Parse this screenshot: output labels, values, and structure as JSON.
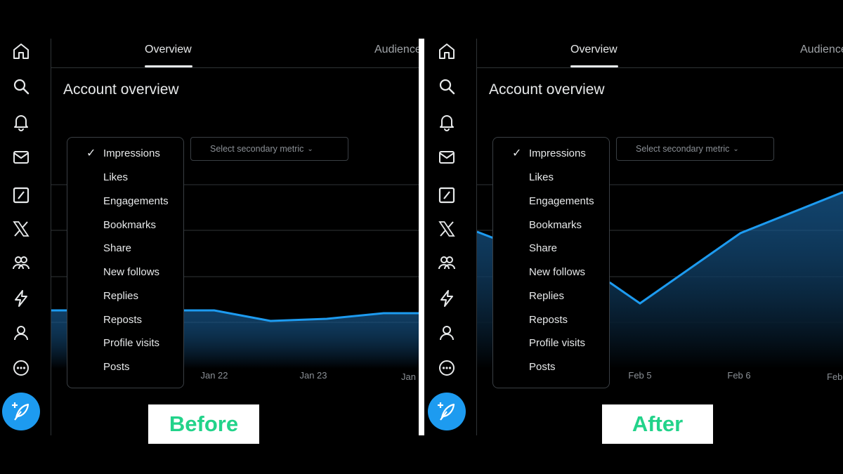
{
  "colors": {
    "accent": "#1d9bf0",
    "label_green": "#22d38a",
    "line": "#1d9bf0"
  },
  "nav_icons": [
    "home-icon",
    "search-icon",
    "bell-icon",
    "mail-icon",
    "grok-icon",
    "x-logo-icon",
    "communities-icon",
    "lightning-icon",
    "profile-icon",
    "more-icon"
  ],
  "before": {
    "tabs": {
      "active": "Overview",
      "inactive": "Audience"
    },
    "title": "Account overview",
    "secondary_select": "Select secondary metric",
    "metrics": [
      "Impressions",
      "Likes",
      "Engagements",
      "Bookmarks",
      "Share",
      "New follows",
      "Replies",
      "Reposts",
      "Profile visits",
      "Posts"
    ],
    "selected_metric": "Impressions",
    "x_labels": [
      "Jan 22",
      "Jan 23",
      "Jan"
    ],
    "label": "Before"
  },
  "after": {
    "tabs": {
      "active": "Overview",
      "inactive": "Audience"
    },
    "title": "Account overview",
    "secondary_select": "Select secondary metric",
    "metrics": [
      "Impressions",
      "Likes",
      "Engagements",
      "Bookmarks",
      "Share",
      "New follows",
      "Replies",
      "Reposts",
      "Profile visits",
      "Posts"
    ],
    "selected_metric": "Impressions",
    "x_labels": [
      "Feb 5",
      "Feb 6",
      "Feb"
    ],
    "label": "After"
  },
  "chart_data": [
    {
      "type": "area",
      "x": [
        "Jan 22",
        "Jan 23",
        "Jan"
      ],
      "series": [
        {
          "values": [
            0.7,
            0.6,
            0.68
          ]
        }
      ]
    },
    {
      "type": "area",
      "x": [
        "Feb 5",
        "Feb 6",
        "Feb"
      ],
      "series": [
        {
          "values": [
            0.5,
            1.45,
            2.2
          ]
        }
      ]
    }
  ]
}
